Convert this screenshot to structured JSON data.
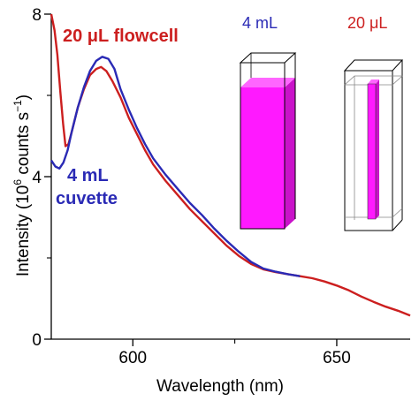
{
  "chart_data": {
    "type": "line",
    "xlabel": "Wavelength (nm)",
    "ylabel": {
      "pre": "Intensity (10",
      "sup": "6",
      "mid": " counts s",
      "sup2": "−1",
      "post": ")"
    },
    "xlim": [
      580,
      668
    ],
    "ylim": [
      0,
      8
    ],
    "x_ticks": [
      {
        "value": 600,
        "label": "600"
      },
      {
        "value": 650,
        "label": "650"
      }
    ],
    "y_ticks": [
      {
        "value": 0,
        "label": "0"
      },
      {
        "value": 4,
        "label": "4"
      },
      {
        "value": 8,
        "label": "8"
      }
    ],
    "x_minor_ticks": [
      625
    ],
    "y_minor_ticks": [
      2,
      6
    ],
    "colors": {
      "flowcell": "#cc1f1f",
      "cuvette": "#2a2ab5",
      "liquid": "#ff19ff",
      "liquid_side": "#c913c9"
    },
    "series": [
      {
        "name": "20 μL flowcell",
        "color": "#cc1f1f",
        "points": [
          [
            580,
            8.0
          ],
          [
            580.8,
            7.6
          ],
          [
            581.5,
            7.0
          ],
          [
            582.2,
            6.1
          ],
          [
            582.9,
            5.3
          ],
          [
            583.5,
            4.75
          ],
          [
            584.2,
            4.8
          ],
          [
            585,
            5.1
          ],
          [
            586.5,
            5.7
          ],
          [
            588,
            6.15
          ],
          [
            589.5,
            6.5
          ],
          [
            591,
            6.65
          ],
          [
            592.2,
            6.7
          ],
          [
            593.5,
            6.6
          ],
          [
            595,
            6.35
          ],
          [
            597,
            5.95
          ],
          [
            599,
            5.45
          ],
          [
            601,
            5.05
          ],
          [
            603,
            4.65
          ],
          [
            605,
            4.3
          ],
          [
            608,
            3.9
          ],
          [
            611,
            3.55
          ],
          [
            614,
            3.2
          ],
          [
            617,
            2.9
          ],
          [
            620,
            2.6
          ],
          [
            623,
            2.3
          ],
          [
            626,
            2.05
          ],
          [
            629,
            1.85
          ],
          [
            632,
            1.72
          ],
          [
            635,
            1.65
          ],
          [
            638,
            1.6
          ],
          [
            641,
            1.55
          ],
          [
            644,
            1.5
          ],
          [
            647,
            1.42
          ],
          [
            650,
            1.32
          ],
          [
            653,
            1.2
          ],
          [
            656,
            1.05
          ],
          [
            659,
            0.92
          ],
          [
            662,
            0.8
          ],
          [
            665,
            0.7
          ],
          [
            668,
            0.58
          ]
        ]
      },
      {
        "name": "4 mL cuvette",
        "color": "#2a2ab5",
        "points": [
          [
            580,
            4.4
          ],
          [
            581,
            4.25
          ],
          [
            582,
            4.2
          ],
          [
            583,
            4.35
          ],
          [
            584,
            4.65
          ],
          [
            585,
            5.1
          ],
          [
            586.5,
            5.7
          ],
          [
            588,
            6.2
          ],
          [
            589.5,
            6.6
          ],
          [
            591,
            6.85
          ],
          [
            592.5,
            6.95
          ],
          [
            594,
            6.9
          ],
          [
            595.5,
            6.65
          ],
          [
            597,
            6.15
          ],
          [
            599,
            5.65
          ],
          [
            601,
            5.2
          ],
          [
            603,
            4.8
          ],
          [
            605,
            4.45
          ],
          [
            608,
            4.05
          ],
          [
            611,
            3.7
          ],
          [
            614,
            3.35
          ],
          [
            617,
            3.05
          ],
          [
            620,
            2.72
          ],
          [
            623,
            2.42
          ],
          [
            626,
            2.15
          ],
          [
            629,
            1.9
          ],
          [
            632,
            1.74
          ],
          [
            635,
            1.66
          ],
          [
            638,
            1.6
          ],
          [
            641,
            1.55
          ]
        ]
      }
    ],
    "annotations": {
      "flowcell": "20 μL flowcell",
      "cuvette_line1": "4 mL",
      "cuvette_line2": "cuvette",
      "header_4ml": "4 mL",
      "header_20ul": "20 μL"
    }
  }
}
